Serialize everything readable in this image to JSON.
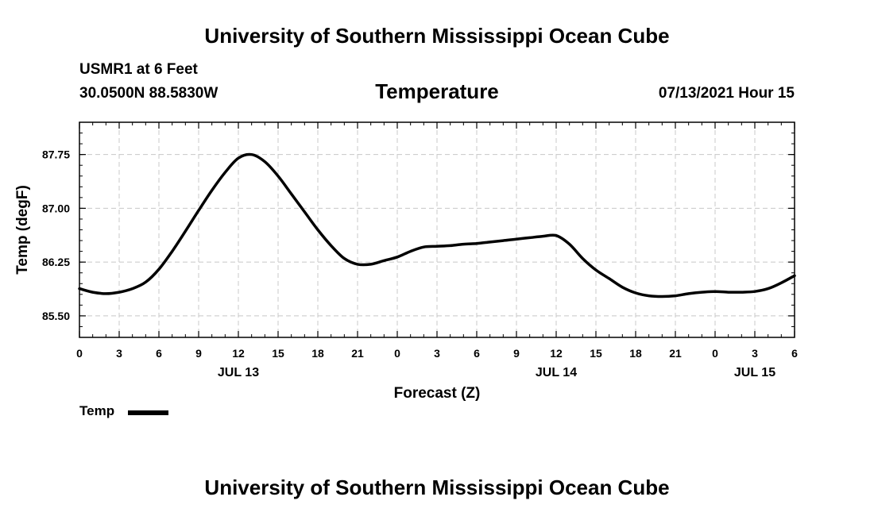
{
  "header": {
    "title": "University of Southern Mississippi Ocean Cube",
    "station": "USMR1 at 6 Feet",
    "coords": "30.0500N  88.5830W",
    "chart_heading": "Temperature",
    "datetime": "07/13/2021 Hour 15"
  },
  "footer": {
    "title": "University of Southern Mississippi Ocean Cube"
  },
  "legend": {
    "label": "Temp",
    "color": "#000000"
  },
  "chart_data": {
    "type": "line",
    "title": "Temperature",
    "xlabel": "Forecast (Z)",
    "ylabel": "Temp (degF)",
    "xlim": [
      0,
      54
    ],
    "ylim": [
      85.2,
      88.2
    ],
    "grid": true,
    "x_ticks": [
      0,
      3,
      6,
      9,
      12,
      15,
      18,
      21,
      24,
      27,
      30,
      33,
      36,
      39,
      42,
      45,
      48,
      51,
      54
    ],
    "x_tick_labels": [
      "0",
      "3",
      "6",
      "9",
      "12",
      "15",
      "18",
      "21",
      "0",
      "3",
      "6",
      "9",
      "12",
      "15",
      "18",
      "21",
      "0",
      "3",
      "6"
    ],
    "y_ticks": [
      85.5,
      86.25,
      87.0,
      87.75
    ],
    "y_tick_labels": [
      "85.50",
      "86.25",
      "87.00",
      "87.75"
    ],
    "date_labels": [
      {
        "label": "JUL 13",
        "x": 12
      },
      {
        "label": "JUL 14",
        "x": 36
      },
      {
        "label": "JUL 15",
        "x": 51
      }
    ],
    "series": [
      {
        "name": "Temp",
        "x": [
          0,
          1,
          2,
          3,
          4,
          5,
          6,
          7,
          8,
          9,
          10,
          11,
          12,
          13,
          14,
          15,
          16,
          17,
          18,
          19,
          20,
          21,
          22,
          23,
          24,
          25,
          26,
          27,
          28,
          29,
          30,
          31,
          32,
          33,
          34,
          35,
          36,
          37,
          38,
          39,
          40,
          41,
          42,
          43,
          44,
          45,
          46,
          47,
          48,
          49,
          50,
          51,
          52,
          53,
          54
        ],
        "values": [
          85.88,
          85.83,
          85.81,
          85.83,
          85.88,
          85.97,
          86.15,
          86.4,
          86.68,
          86.97,
          87.25,
          87.5,
          87.7,
          87.75,
          87.65,
          87.45,
          87.2,
          86.95,
          86.7,
          86.48,
          86.3,
          86.22,
          86.22,
          86.27,
          86.32,
          86.4,
          86.46,
          86.47,
          86.48,
          86.5,
          86.51,
          86.53,
          86.55,
          86.57,
          86.59,
          86.61,
          86.62,
          86.5,
          86.3,
          86.14,
          86.02,
          85.9,
          85.82,
          85.78,
          85.77,
          85.78,
          85.81,
          85.83,
          85.84,
          85.83,
          85.83,
          85.84,
          85.88,
          85.96,
          86.06
        ]
      }
    ]
  }
}
